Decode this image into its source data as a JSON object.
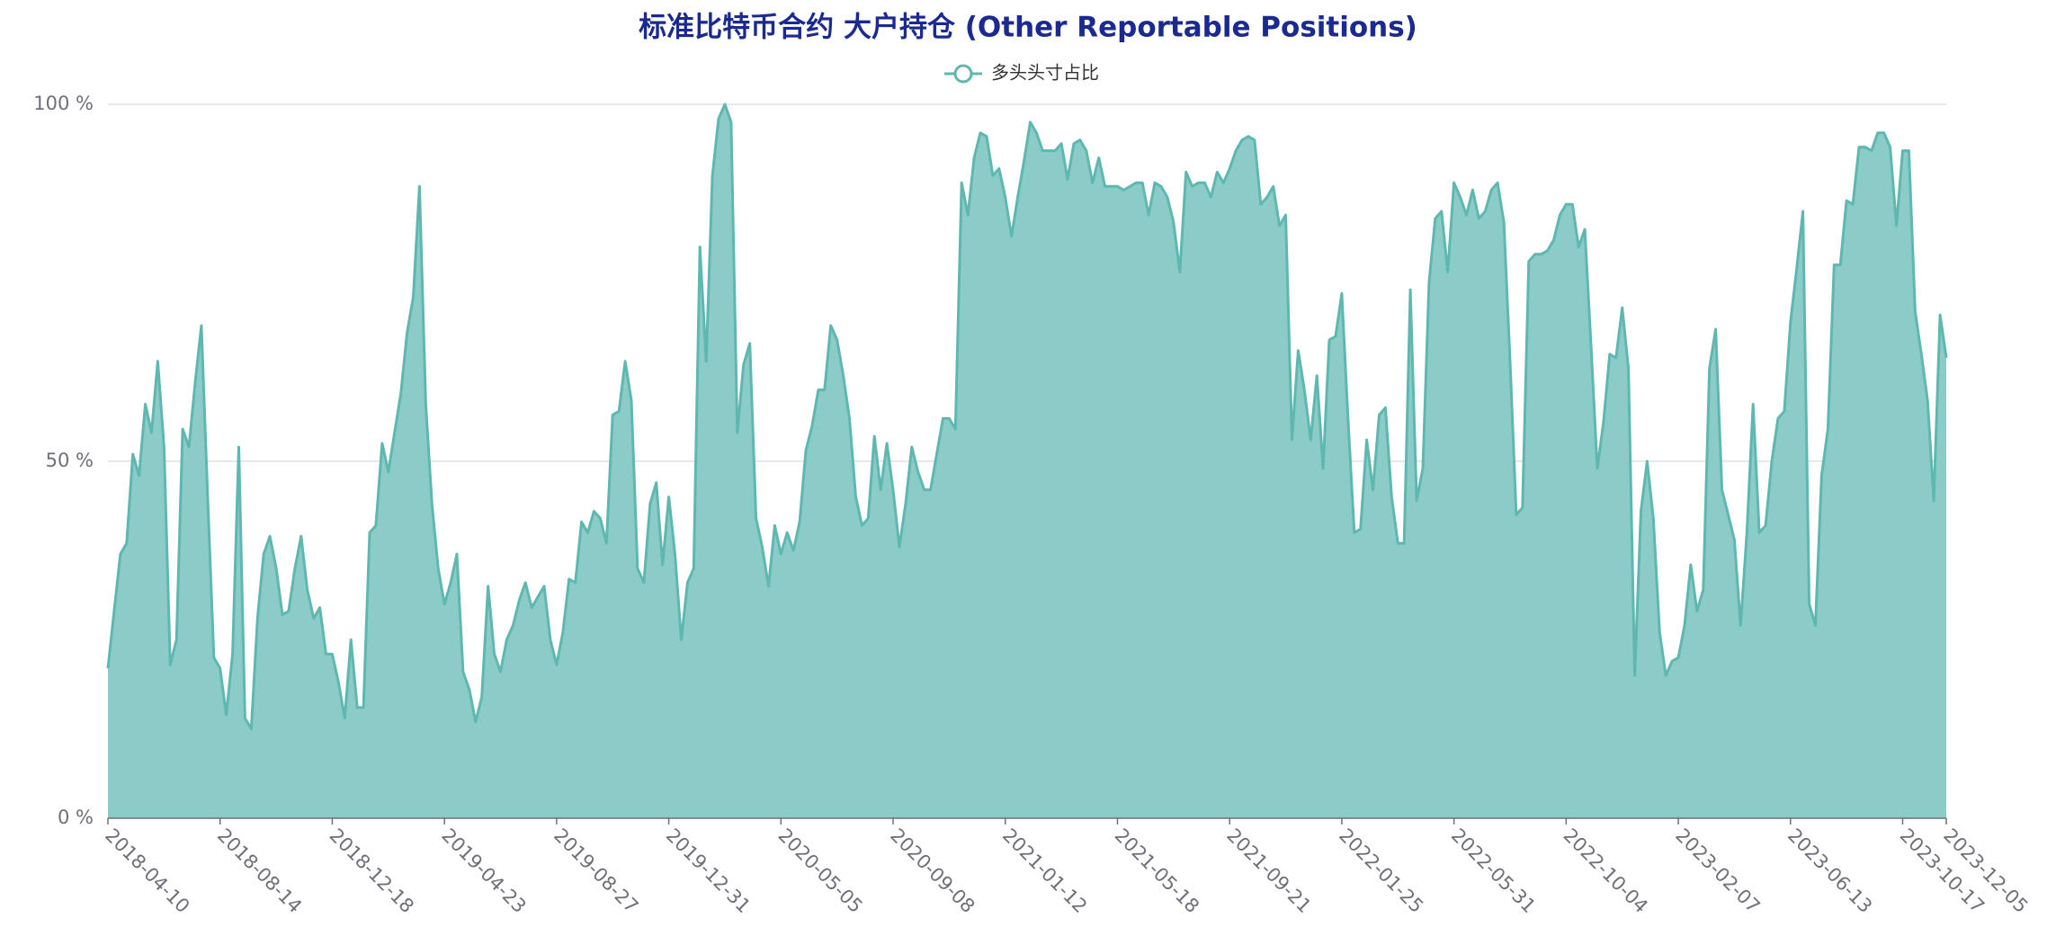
{
  "chart_data": {
    "type": "area",
    "title": "标准比特币合约 大户持仓 (Other Reportable Positions)",
    "categories": [
      "2018-04-10",
      null,
      null,
      null,
      null,
      null,
      null,
      null,
      null,
      null,
      null,
      null,
      null,
      null,
      null,
      null,
      null,
      null,
      "2018-08-14",
      null,
      null,
      null,
      null,
      null,
      null,
      null,
      null,
      null,
      null,
      null,
      null,
      null,
      null,
      null,
      null,
      null,
      "2018-12-18",
      null,
      null,
      null,
      null,
      null,
      null,
      null,
      null,
      null,
      null,
      null,
      null,
      null,
      null,
      null,
      null,
      null,
      "2019-04-23",
      null,
      null,
      null,
      null,
      null,
      null,
      null,
      null,
      null,
      null,
      null,
      null,
      null,
      null,
      null,
      null,
      null,
      "2019-08-27",
      null,
      null,
      null,
      null,
      null,
      null,
      null,
      null,
      null,
      null,
      null,
      null,
      null,
      null,
      null,
      null,
      null,
      "2019-12-31",
      null,
      null,
      null,
      null,
      null,
      null,
      null,
      null,
      null,
      null,
      null,
      null,
      null,
      null,
      null,
      null,
      null,
      "2020-05-05",
      null,
      null,
      null,
      null,
      null,
      null,
      null,
      null,
      null,
      null,
      null,
      null,
      null,
      null,
      null,
      null,
      null,
      "2020-09-08",
      null,
      null,
      null,
      null,
      null,
      null,
      null,
      null,
      null,
      null,
      null,
      null,
      null,
      null,
      null,
      null,
      null,
      "2021-01-12",
      null,
      null,
      null,
      null,
      null,
      null,
      null,
      null,
      null,
      null,
      null,
      null,
      null,
      null,
      null,
      null,
      null,
      "2021-05-18",
      null,
      null,
      null,
      null,
      null,
      null,
      null,
      null,
      null,
      null,
      null,
      null,
      null,
      null,
      null,
      null,
      null,
      "2021-09-21",
      null,
      null,
      null,
      null,
      null,
      null,
      null,
      null,
      null,
      null,
      null,
      null,
      null,
      null,
      null,
      null,
      null,
      "2022-01-25",
      null,
      null,
      null,
      null,
      null,
      null,
      null,
      null,
      null,
      null,
      null,
      null,
      null,
      null,
      null,
      null,
      null,
      "2022-05-31",
      null,
      null,
      null,
      null,
      null,
      null,
      null,
      null,
      null,
      null,
      null,
      null,
      null,
      null,
      null,
      null,
      null,
      "2022-10-04",
      null,
      null,
      null,
      null,
      null,
      null,
      null,
      null,
      null,
      null,
      null,
      null,
      null,
      null,
      null,
      null,
      null,
      "2023-02-07",
      null,
      null,
      null,
      null,
      null,
      null,
      null,
      null,
      null,
      null,
      null,
      null,
      null,
      null,
      null,
      null,
      null,
      "2023-06-13",
      null,
      null,
      null,
      null,
      null,
      null,
      null,
      null,
      null,
      null,
      null,
      null,
      null,
      null,
      null,
      null,
      null,
      "2023-10-17",
      null,
      null,
      null,
      null,
      null,
      null,
      "2023-12-05"
    ],
    "series": [
      {
        "name": "多头头寸占比",
        "color": "#5fb8b0",
        "fill": "#8bcbc8",
        "values": [
          21,
          29,
          37,
          38.5,
          51,
          48,
          58,
          54,
          64,
          52,
          21.5,
          25,
          54.5,
          52,
          61,
          69,
          45,
          22.5,
          21,
          14.5,
          23,
          52,
          14,
          12.5,
          28,
          37,
          39.5,
          35,
          28.5,
          29,
          35,
          39.5,
          32,
          28,
          29.5,
          23,
          23,
          19,
          14,
          25,
          15.5,
          15.5,
          40,
          41,
          52.5,
          48.5,
          54,
          59.5,
          68,
          73,
          88.5,
          58,
          44,
          35,
          30,
          33,
          37,
          20.5,
          18,
          13.5,
          17,
          32.5,
          23,
          20.5,
          25,
          27,
          30.5,
          33,
          29.5,
          31,
          32.5,
          25,
          21.5,
          26,
          33.5,
          33,
          41.5,
          40,
          43,
          42,
          38.5,
          56.5,
          57,
          64,
          58.5,
          35,
          33,
          44,
          47,
          35.5,
          45,
          37,
          25,
          33,
          35,
          80,
          64,
          90,
          98,
          100,
          97.5,
          54,
          63.5,
          66.5,
          42,
          38,
          32.5,
          41,
          37,
          40,
          37.5,
          41.5,
          51.5,
          55,
          60,
          60,
          69,
          67,
          62,
          56,
          45,
          41,
          42,
          53.5,
          46,
          52.5,
          46,
          38,
          44,
          52,
          48.5,
          46,
          46,
          51,
          56,
          56,
          54.5,
          89,
          84.5,
          92.5,
          96,
          95.5,
          90,
          91,
          87,
          81.5,
          87,
          92,
          97.5,
          96,
          93.5,
          93.5,
          93.5,
          94.5,
          89.5,
          94.5,
          95,
          93.5,
          89,
          92.5,
          88.5,
          88.5,
          88.5,
          88,
          88.5,
          89,
          89,
          84.5,
          89,
          88.5,
          87,
          83.5,
          76.5,
          90.5,
          88.5,
          89,
          89,
          87,
          90.5,
          89,
          91,
          93.5,
          95,
          95.5,
          95,
          86,
          87,
          88.5,
          83,
          84.5,
          53,
          65.5,
          60,
          53,
          62,
          49,
          67,
          67.5,
          73.5,
          56,
          40,
          40.5,
          53,
          46,
          56.5,
          57.5,
          45,
          38.5,
          38.5,
          74,
          44.5,
          49,
          75,
          84,
          85,
          76.5,
          89,
          87,
          84.5,
          88,
          84,
          85,
          88,
          89,
          83.5,
          64,
          42.5,
          43.5,
          78,
          79,
          79,
          79.5,
          81,
          84.5,
          86,
          86,
          80,
          82.5,
          66,
          49,
          55.5,
          65,
          64.5,
          71.5,
          63,
          20,
          43,
          50,
          42,
          26,
          20,
          22,
          22.5,
          27,
          35.5,
          29,
          32,
          63,
          68.5,
          46,
          42.5,
          39,
          27,
          40,
          58,
          40,
          41,
          50,
          56,
          57,
          69.5,
          77,
          85,
          30,
          27,
          48,
          54.5,
          77.5,
          77.5,
          86.5,
          86,
          94,
          94,
          93.5,
          96,
          96,
          94,
          83,
          93.5,
          93.5,
          71,
          65,
          58.5,
          44.5,
          70.5,
          64.5
        ]
      }
    ],
    "ylim": [
      0,
      100
    ],
    "yticks": [
      {
        "value": 0,
        "label": "0 %"
      },
      {
        "value": 50,
        "label": "50 %"
      },
      {
        "value": 100,
        "label": "100 %"
      }
    ],
    "grid": true
  }
}
